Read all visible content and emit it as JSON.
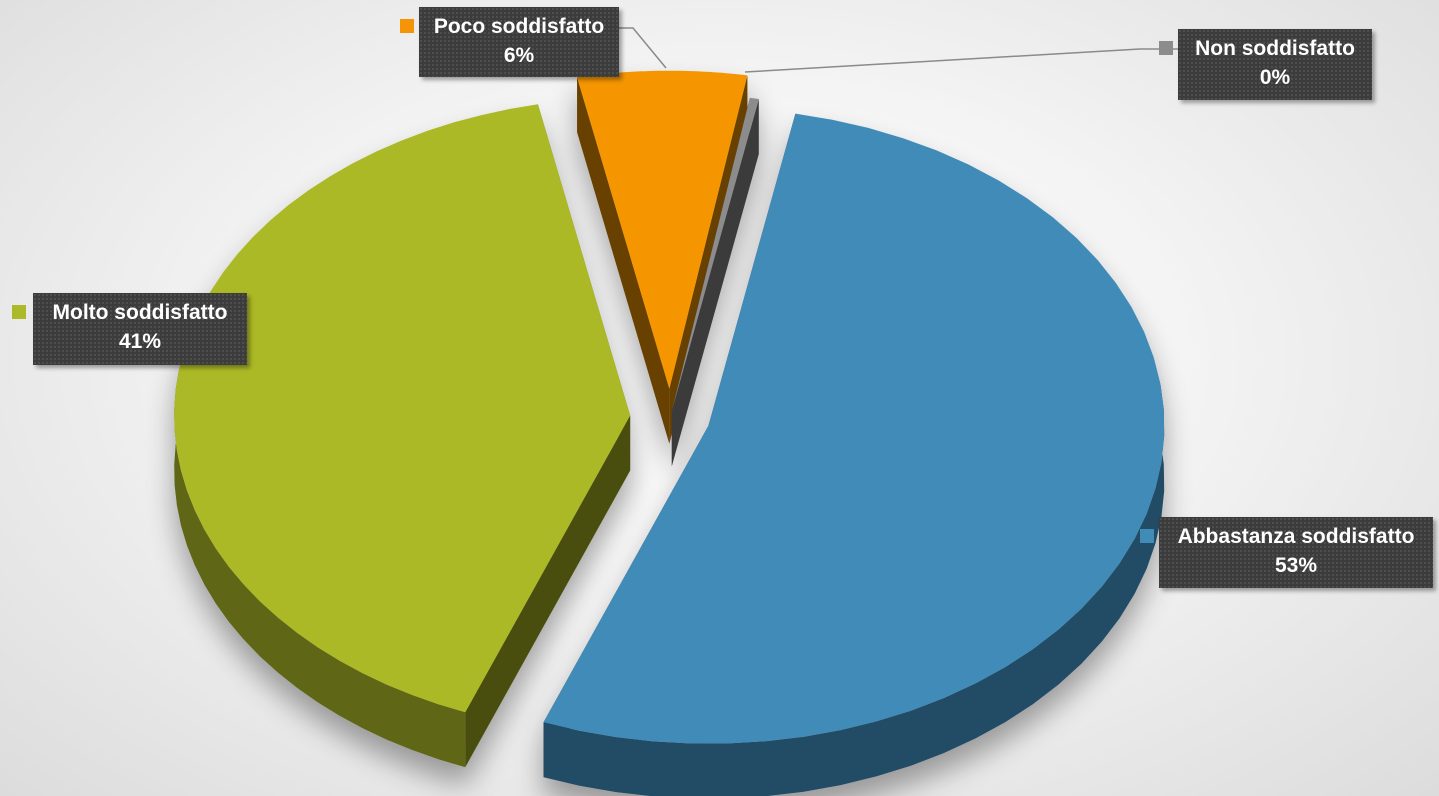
{
  "chart_data": {
    "type": "pie",
    "style": "3d-exploded",
    "slices": [
      {
        "label": "Molto soddisfatto",
        "percent_label": "41%",
        "value": 41,
        "color": "#acb928"
      },
      {
        "label": "Poco soddisfatto",
        "percent_label": "6%",
        "value": 6,
        "color": "#f59506"
      },
      {
        "label": "Non soddisfatto",
        "percent_label": "0%",
        "value": 0,
        "color": "#8c8c8c"
      },
      {
        "label": "Abbastanza soddisfatto",
        "percent_label": "53%",
        "value": 53,
        "color": "#418bb7"
      }
    ],
    "title": "",
    "legend": "none",
    "data_labels": "callouts"
  }
}
